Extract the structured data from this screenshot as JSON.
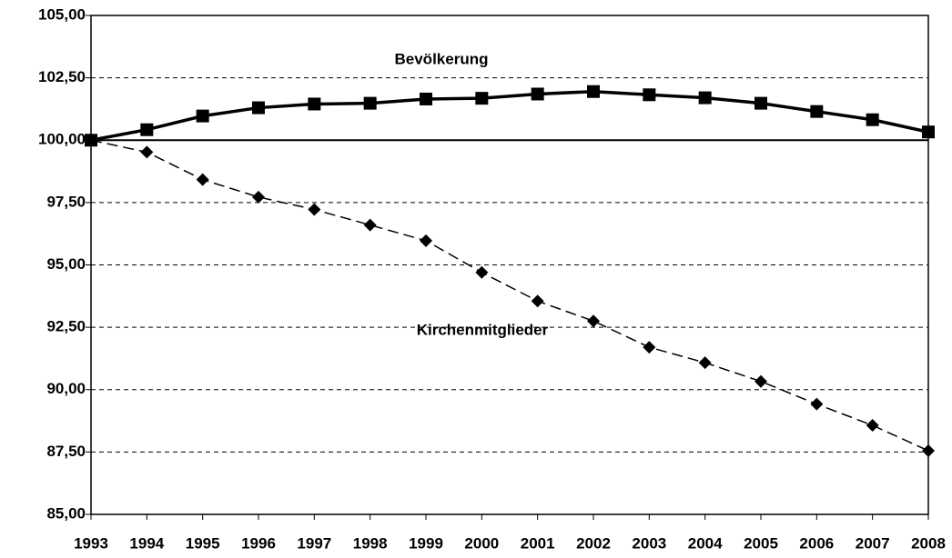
{
  "chart_data": {
    "type": "line",
    "categories": [
      "1993",
      "1994",
      "1995",
      "1996",
      "1997",
      "1998",
      "1999",
      "2000",
      "2001",
      "2002",
      "2003",
      "2004",
      "2005",
      "2006",
      "2007",
      "2008"
    ],
    "series": [
      {
        "name": "Bevölkerung",
        "color": "#000000",
        "marker": "square",
        "dashed": false,
        "values": [
          100,
          100.42,
          100.97,
          101.3,
          101.45,
          101.48,
          101.65,
          101.68,
          101.85,
          101.95,
          101.82,
          101.7,
          101.48,
          101.15,
          100.82,
          100.33
        ]
      },
      {
        "name": "Kirchenmitglieder",
        "color": "#000000",
        "marker": "diamond",
        "dashed": true,
        "values": [
          100,
          99.52,
          98.42,
          97.72,
          97.22,
          96.6,
          95.97,
          94.7,
          93.55,
          92.75,
          91.7,
          91.08,
          90.33,
          89.42,
          88.57,
          87.55
        ]
      }
    ],
    "ylim": [
      85,
      105
    ],
    "yticks": [
      {
        "value": 85,
        "label": "85,00"
      },
      {
        "value": 87.5,
        "label": "87,50"
      },
      {
        "value": 90,
        "label": "90,00"
      },
      {
        "value": 92.5,
        "label": "92,50"
      },
      {
        "value": 95,
        "label": "95,00"
      },
      {
        "value": 97.5,
        "label": "97,50"
      },
      {
        "value": 100,
        "label": "100,00"
      },
      {
        "value": 102.5,
        "label": "102,50"
      },
      {
        "value": 105,
        "label": "105,00"
      }
    ],
    "reference_line": 100,
    "grid": true
  }
}
